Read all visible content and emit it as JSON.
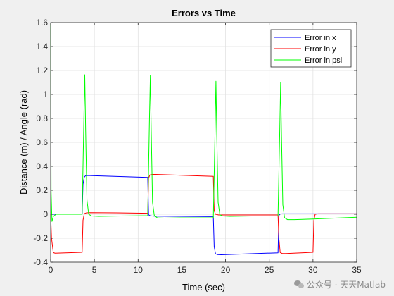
{
  "chart_data": {
    "type": "line",
    "title": "Errors vs Time",
    "xlabel": "Time (sec)",
    "ylabel": "Distance (m) / Angle (rad)",
    "xlim": [
      0,
      35
    ],
    "ylim": [
      -0.4,
      1.6
    ],
    "xticks": [
      0,
      5,
      10,
      15,
      20,
      25,
      30,
      35
    ],
    "yticks": [
      -0.4,
      -0.2,
      0,
      0.2,
      0.4,
      0.6,
      0.8,
      1.0,
      1.2,
      1.4,
      1.6
    ],
    "xtick_labels": [
      "0",
      "5",
      "10",
      "15",
      "20",
      "25",
      "30",
      "35"
    ],
    "ytick_labels": [
      "-0.4",
      "-0.2",
      "0",
      "0.2",
      "0.4",
      "0.6",
      "0.8",
      "1",
      "1.2",
      "1.4",
      "1.6"
    ],
    "grid": true,
    "legend_position": "top-right",
    "series": [
      {
        "name": "Error in x",
        "color": "#0000ff",
        "x": [
          0,
          3.6,
          3.7,
          3.85,
          4.0,
          4.3,
          11.1,
          11.2,
          11.35,
          11.6,
          11.9,
          18.6,
          18.7,
          18.85,
          19.1,
          19.5,
          26.0,
          26.1,
          26.25,
          26.5,
          26.9,
          35
        ],
        "y": [
          0,
          0,
          0.25,
          0.31,
          0.322,
          0.323,
          0.307,
          -0.005,
          -0.012,
          -0.015,
          -0.016,
          -0.02,
          -0.27,
          -0.33,
          -0.337,
          -0.338,
          -0.322,
          -0.01,
          0.002,
          0.004,
          0.004,
          0.004
        ]
      },
      {
        "name": "Error in y",
        "color": "#ff0000",
        "x": [
          0,
          0.1,
          0.3,
          0.5,
          3.6,
          3.7,
          3.85,
          4.1,
          4.5,
          7.5,
          11.1,
          11.2,
          11.35,
          11.6,
          12.0,
          18.6,
          18.7,
          18.85,
          19.2,
          19.6,
          26.0,
          26.1,
          26.25,
          26.5,
          26.9,
          30.0,
          30.1,
          30.25,
          30.6,
          31.0,
          35
        ],
        "y": [
          0,
          -0.2,
          -0.32,
          -0.325,
          -0.318,
          -0.05,
          0.005,
          0.012,
          0.013,
          0.012,
          0.008,
          0.3,
          0.328,
          0.332,
          0.332,
          0.316,
          0.03,
          0.0,
          -0.006,
          -0.006,
          -0.006,
          -0.2,
          -0.32,
          -0.328,
          -0.328,
          -0.318,
          -0.05,
          0.0,
          0.004,
          0.004,
          0.004
        ]
      },
      {
        "name": "Error in psi",
        "color": "#00ff00",
        "x": [
          0,
          0.05,
          0.15,
          0.3,
          0.6,
          1.2,
          3.6,
          3.8,
          3.9,
          4.0,
          4.15,
          4.35,
          4.7,
          5.5,
          8.0,
          11.1,
          11.3,
          11.4,
          11.5,
          11.65,
          11.85,
          12.2,
          13.0,
          15.0,
          18.6,
          18.8,
          18.9,
          19.0,
          19.15,
          19.35,
          19.7,
          20.5,
          23.0,
          26.0,
          26.2,
          26.3,
          26.4,
          26.55,
          26.75,
          27.1,
          27.9,
          30.0,
          35
        ],
        "y": [
          1.6,
          0.2,
          -0.06,
          -0.02,
          0.0,
          0.0,
          0.0,
          0.8,
          1.165,
          0.7,
          0.12,
          0.0,
          -0.015,
          -0.018,
          -0.015,
          -0.012,
          0.8,
          1.16,
          0.7,
          0.1,
          -0.01,
          -0.03,
          -0.032,
          -0.03,
          -0.03,
          0.7,
          1.11,
          0.65,
          0.1,
          -0.005,
          -0.015,
          -0.018,
          -0.015,
          -0.015,
          0.7,
          1.1,
          0.65,
          0.08,
          -0.03,
          -0.045,
          -0.045,
          -0.04,
          -0.025
        ]
      }
    ]
  },
  "watermark": {
    "text": "公众号 · 天天Matlab",
    "icon": "wechat-icon"
  }
}
